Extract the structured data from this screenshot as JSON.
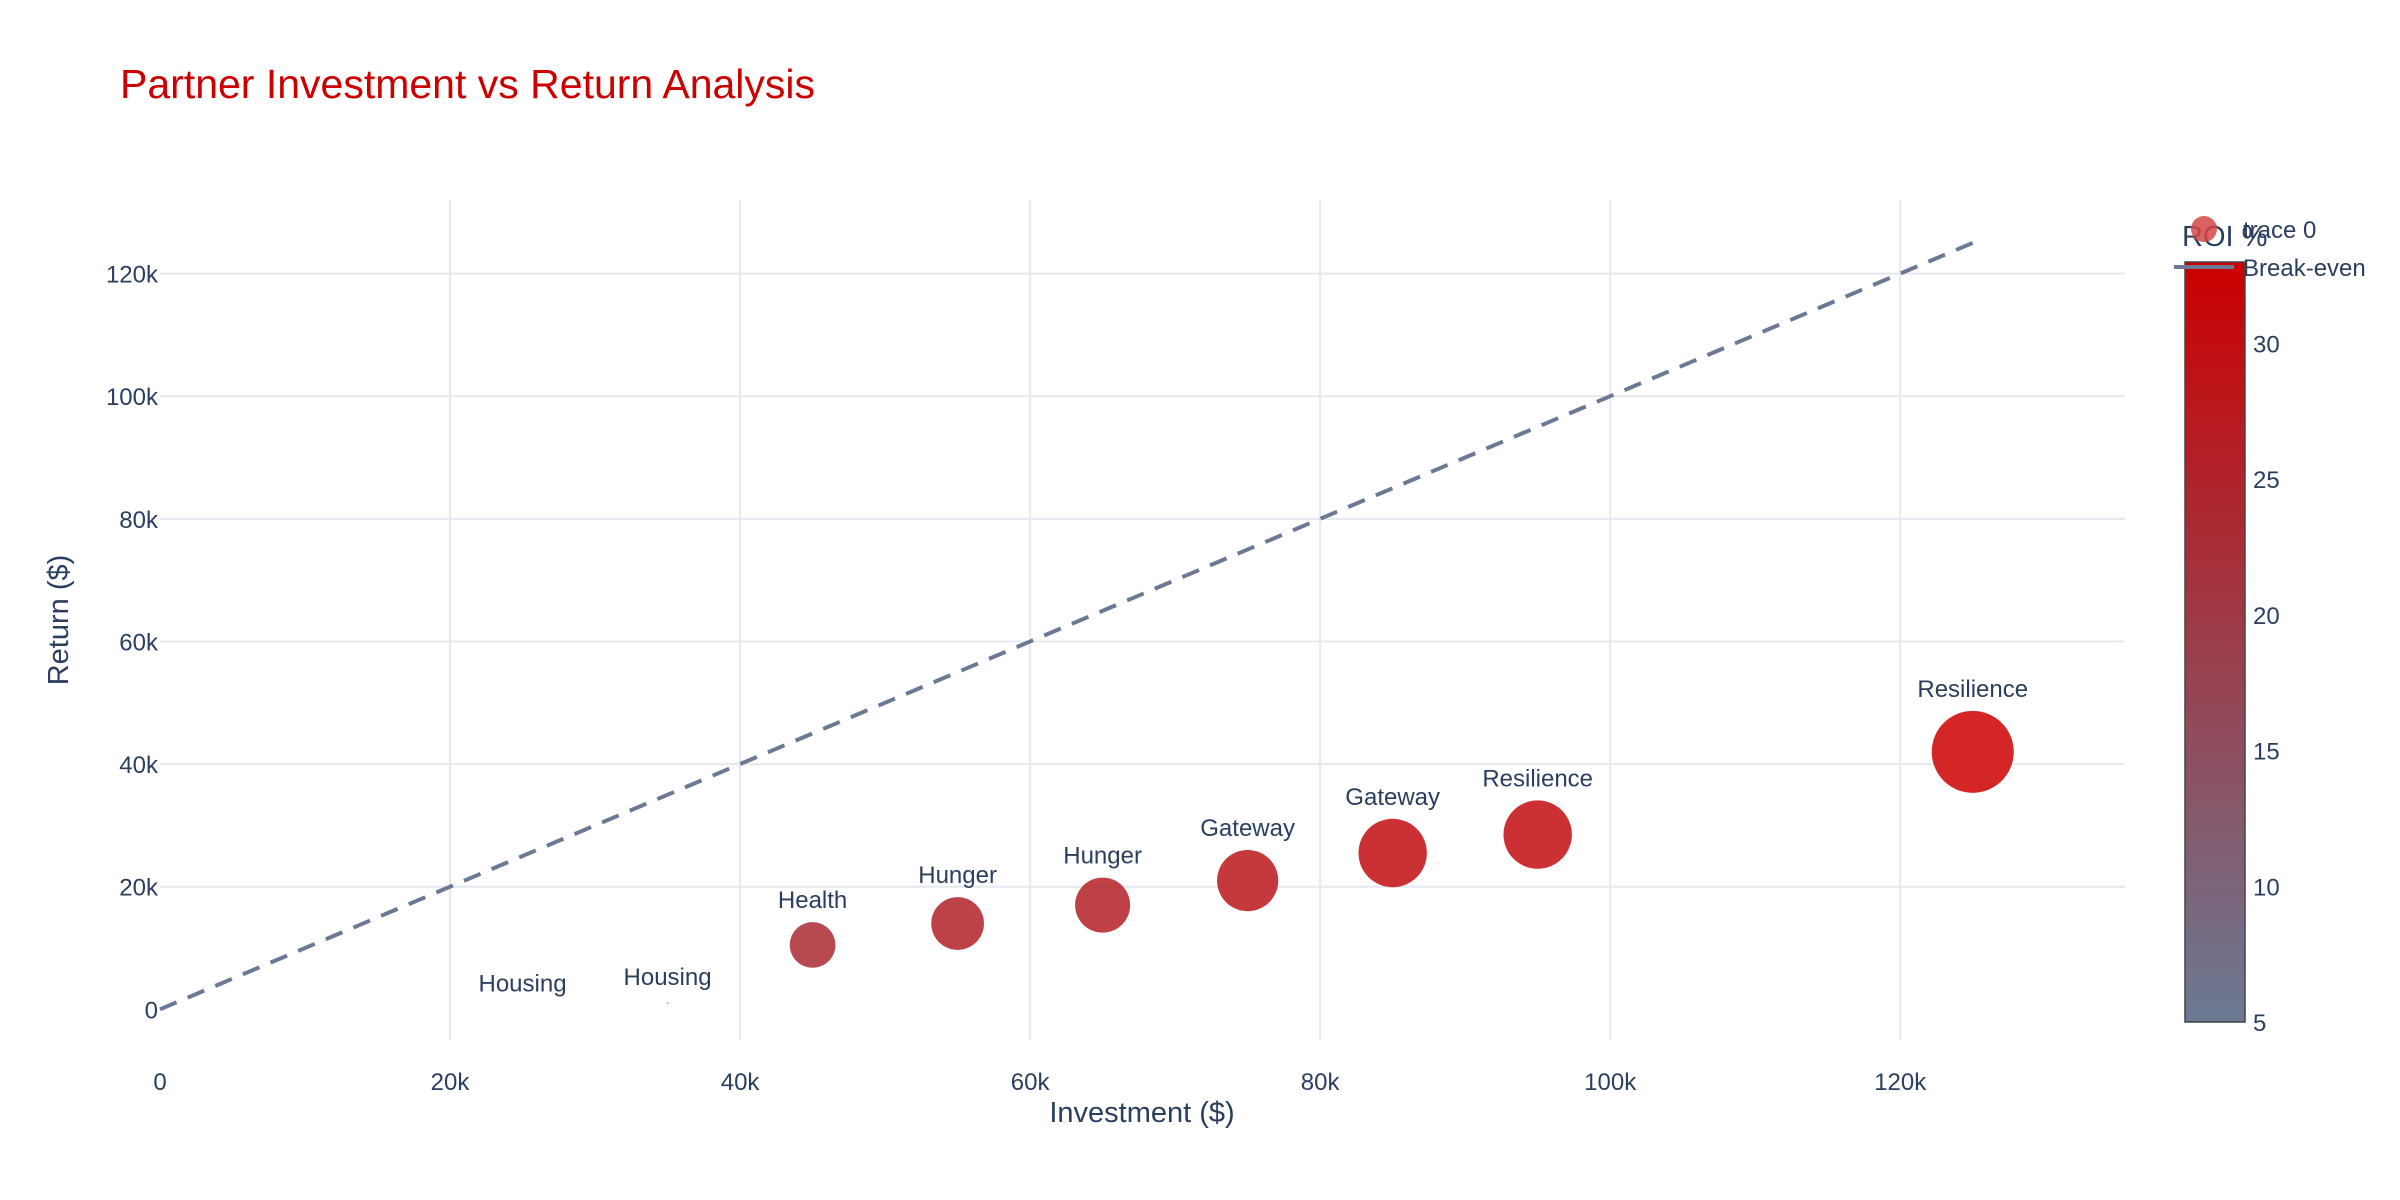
{
  "chart_data": {
    "type": "scatter",
    "title": "Partner Investment vs Return Analysis",
    "xlabel": "Investment ($)",
    "ylabel": "Return ($)",
    "xlim": [
      0,
      135500
    ],
    "ylim": [
      -5000,
      132000
    ],
    "x_ticks": [
      0,
      20000,
      40000,
      60000,
      80000,
      100000,
      120000
    ],
    "x_tick_labels": [
      "0",
      "20k",
      "40k",
      "60k",
      "80k",
      "100k",
      "120k"
    ],
    "y_ticks": [
      0,
      20000,
      40000,
      60000,
      80000,
      100000,
      120000
    ],
    "y_tick_labels": [
      "0",
      "20k",
      "40k",
      "60k",
      "80k",
      "100k",
      "120k"
    ],
    "grid": true,
    "colors": {
      "title": "#cc0000",
      "text": "#2a3f5f",
      "grid": "#e5e8ef",
      "break_even_line": "#6b7a94",
      "colorscale_low": "#6b7a94",
      "colorscale_high": "#cc0000",
      "marker_opacity_color": "#d64545"
    },
    "series": [
      {
        "name": "trace 0",
        "type": "bubble",
        "color_metric": "ROI %",
        "points": [
          {
            "label": "Housing",
            "x": 25000,
            "y": 0,
            "roi": 0
          },
          {
            "label": "Housing",
            "x": 35000,
            "y": 1000,
            "roi": 2.9
          },
          {
            "label": "Health",
            "x": 45000,
            "y": 10500,
            "roi": 23.3
          },
          {
            "label": "Hunger",
            "x": 55000,
            "y": 14000,
            "roi": 25.5
          },
          {
            "label": "Hunger",
            "x": 65000,
            "y": 17000,
            "roi": 26.2
          },
          {
            "label": "Gateway",
            "x": 75000,
            "y": 21000,
            "roi": 28
          },
          {
            "label": "Gateway",
            "x": 85000,
            "y": 25500,
            "roi": 30
          },
          {
            "label": "Resilience",
            "x": 95000,
            "y": 28500,
            "roi": 30
          },
          {
            "label": "Resilience",
            "x": 125000,
            "y": 42000,
            "roi": 33.6
          }
        ]
      },
      {
        "name": "Break-even",
        "type": "line",
        "dash": "dash",
        "x": [
          0,
          125000
        ],
        "y": [
          0,
          125000
        ]
      }
    ],
    "colorbar": {
      "title": "ROI %",
      "min": 5,
      "max": 33,
      "ticks": [
        5,
        10,
        15,
        20,
        25,
        30
      ],
      "tick_labels": [
        "5",
        "10",
        "15",
        "20",
        "25",
        "30"
      ]
    },
    "legend": {
      "placement": "top-right",
      "entries": [
        "trace 0",
        "Break-even"
      ]
    }
  }
}
